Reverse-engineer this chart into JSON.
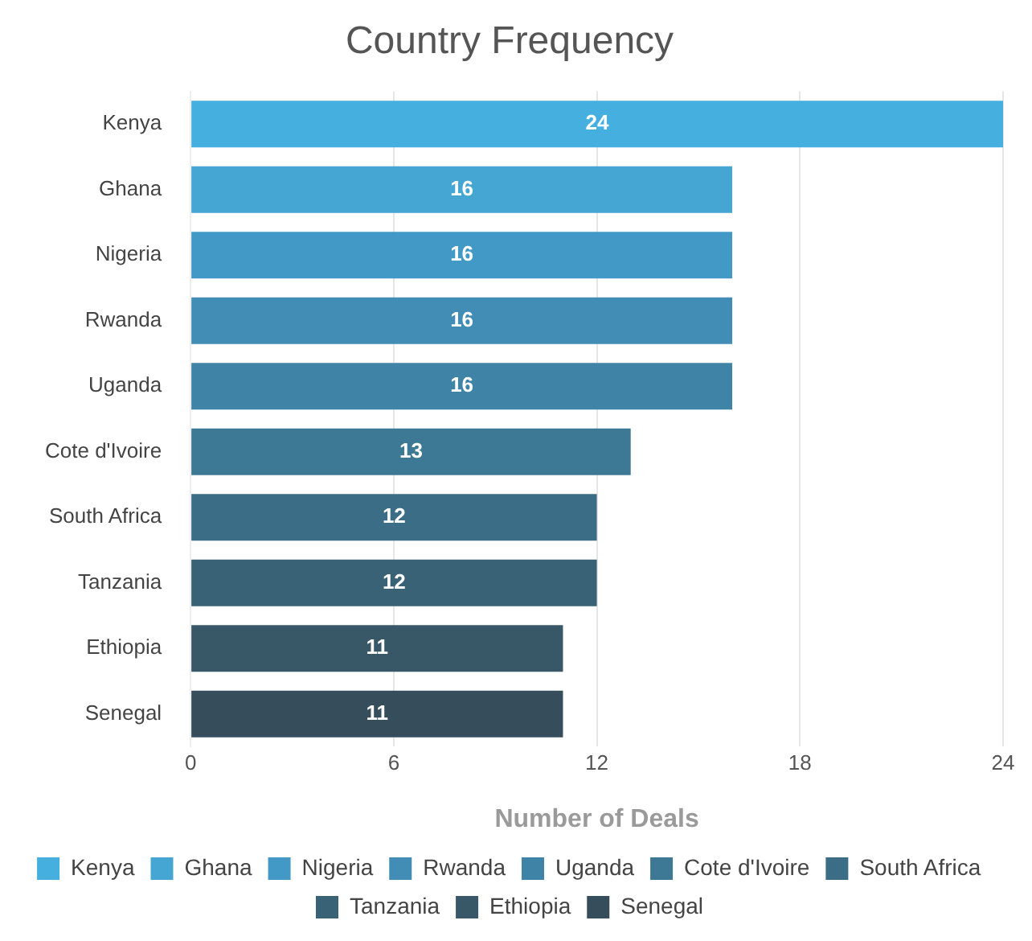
{
  "chart_data": {
    "type": "bar",
    "orientation": "horizontal",
    "title": "Country Frequency",
    "xlabel": "Number of Deals",
    "categories": [
      "Kenya",
      "Ghana",
      "Nigeria",
      "Rwanda",
      "Uganda",
      "Cote d'Ivoire",
      "South Africa",
      "Tanzania",
      "Ethiopia",
      "Senegal"
    ],
    "series": [
      {
        "name": "Kenya",
        "color": "#45b0e0",
        "values": [
          24,
          null,
          null,
          null,
          null,
          null,
          null,
          null,
          null,
          null
        ]
      },
      {
        "name": "Ghana",
        "color": "#45a5d3",
        "values": [
          null,
          16,
          null,
          null,
          null,
          null,
          null,
          null,
          null,
          null
        ]
      },
      {
        "name": "Nigeria",
        "color": "#4399c5",
        "values": [
          null,
          null,
          16,
          null,
          null,
          null,
          null,
          null,
          null,
          null
        ]
      },
      {
        "name": "Rwanda",
        "color": "#418db6",
        "values": [
          null,
          null,
          null,
          16,
          null,
          null,
          null,
          null,
          null,
          null
        ]
      },
      {
        "name": "Uganda",
        "color": "#3f83a6",
        "values": [
          null,
          null,
          null,
          null,
          16,
          null,
          null,
          null,
          null,
          null
        ]
      },
      {
        "name": "Cote d'Ivoire",
        "color": "#3d7895",
        "values": [
          null,
          null,
          null,
          null,
          null,
          13,
          null,
          null,
          null,
          null
        ]
      },
      {
        "name": "South Africa",
        "color": "#3b6d86",
        "values": [
          null,
          null,
          null,
          null,
          null,
          null,
          12,
          null,
          null,
          null
        ]
      },
      {
        "name": "Tanzania",
        "color": "#3a6277",
        "values": [
          null,
          null,
          null,
          null,
          null,
          null,
          null,
          12,
          null,
          null
        ]
      },
      {
        "name": "Ethiopia",
        "color": "#385868",
        "values": [
          null,
          null,
          null,
          null,
          null,
          null,
          null,
          null,
          11,
          null
        ]
      },
      {
        "name": "Senegal",
        "color": "#364e5b",
        "values": [
          null,
          null,
          null,
          null,
          null,
          null,
          null,
          null,
          null,
          11
        ]
      }
    ],
    "xlim": [
      0,
      24
    ],
    "xticks": [
      0,
      6,
      12,
      18,
      24
    ],
    "grid": "x",
    "legend": "bottom",
    "data_labels": true
  }
}
